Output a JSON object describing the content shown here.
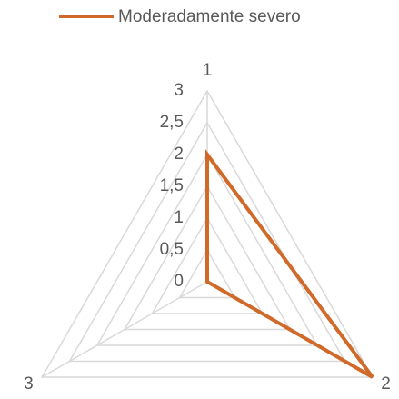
{
  "chart_data": {
    "type": "radar",
    "categories": [
      "1",
      "2",
      "3"
    ],
    "series": [
      {
        "name": "Moderadamente severo",
        "color": "#cf6a2b",
        "values": [
          2,
          3,
          0
        ]
      }
    ],
    "ylim": [
      0,
      3
    ],
    "yticks": [
      0,
      {
        "value": 0.5,
        "label": "0,5"
      },
      1,
      {
        "value": 1.5,
        "label": "1,5"
      },
      2,
      {
        "value": 2.5,
        "label": "2,5"
      },
      3
    ],
    "grid": true,
    "legend": "top"
  }
}
